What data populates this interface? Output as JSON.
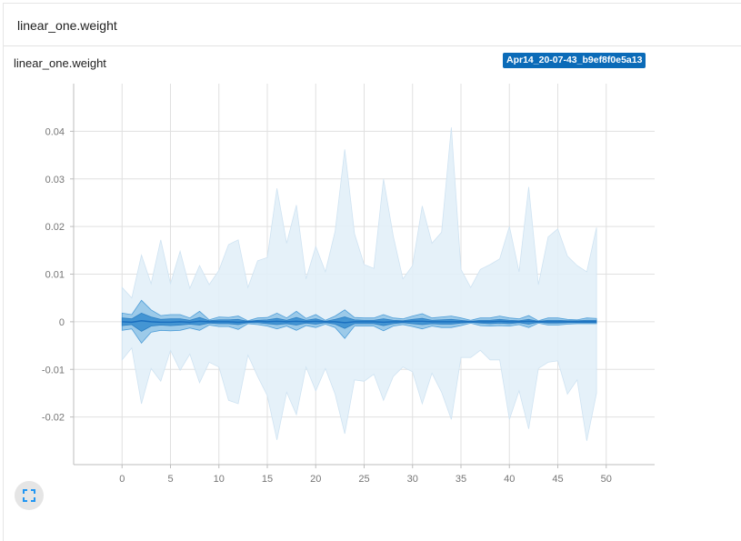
{
  "header": {
    "title": "linear_one.weight"
  },
  "card": {
    "title": "linear_one.weight",
    "run_label": "Apr14_20-07-43_b9ef8f0e5a13"
  },
  "icons": {
    "expand": "fullscreen-expand-icon"
  },
  "colors": {
    "band_outer": "#e2eff8",
    "band_mid": "#8fc3e6",
    "band_inner": "#3b8fd0",
    "median": "#1a6fbf",
    "grid": "#e0e0e0",
    "accent": "#2196f3"
  },
  "chart_data": {
    "type": "area",
    "title": "linear_one.weight",
    "xlabel": "",
    "ylabel": "",
    "xlim": [
      -5,
      55
    ],
    "ylim": [
      -0.03,
      0.05
    ],
    "x_ticks": [
      0,
      5,
      10,
      15,
      20,
      25,
      30,
      35,
      40,
      45,
      50
    ],
    "y_ticks": [
      -0.02,
      -0.01,
      0,
      0.01,
      0.02,
      0.03,
      0.04
    ],
    "y_tick_labels": [
      "-0.02",
      "-0.01",
      "0",
      "0.01",
      "0.02",
      "0.03",
      "0.04"
    ],
    "grid": true,
    "x": [
      0,
      1,
      2,
      3,
      4,
      5,
      6,
      7,
      8,
      9,
      10,
      11,
      12,
      13,
      14,
      15,
      16,
      17,
      18,
      19,
      20,
      21,
      22,
      23,
      24,
      25,
      26,
      27,
      28,
      29,
      30,
      31,
      32,
      33,
      34,
      35,
      36,
      37,
      38,
      39,
      40,
      41,
      42,
      43,
      44,
      45,
      46,
      47,
      48,
      49
    ],
    "series": [
      {
        "band": "outer",
        "upper": [
          0.0072,
          0.005,
          0.014,
          0.008,
          0.0172,
          0.008,
          0.0148,
          0.007,
          0.0118,
          0.0078,
          0.0108,
          0.0162,
          0.0172,
          0.0072,
          0.0128,
          0.0135,
          0.028,
          0.0165,
          0.0245,
          0.009,
          0.0158,
          0.0105,
          0.019,
          0.0362,
          0.0185,
          0.012,
          0.0112,
          0.03,
          0.018,
          0.009,
          0.0118,
          0.0243,
          0.0165,
          0.0188,
          0.0408,
          0.011,
          0.0072,
          0.011,
          0.012,
          0.0132,
          0.02,
          0.0105,
          0.0283,
          0.0078,
          0.0178,
          0.0195,
          0.0138,
          0.0118,
          0.0105,
          0.0198
        ],
        "lower": [
          -0.008,
          -0.0055,
          -0.0172,
          -0.0098,
          -0.0125,
          -0.006,
          -0.0102,
          -0.0068,
          -0.0128,
          -0.0085,
          -0.0095,
          -0.0165,
          -0.0172,
          -0.007,
          -0.0115,
          -0.0155,
          -0.0248,
          -0.0148,
          -0.0195,
          -0.0095,
          -0.0145,
          -0.0098,
          -0.0152,
          -0.0235,
          -0.0122,
          -0.0125,
          -0.011,
          -0.0165,
          -0.0115,
          -0.0095,
          -0.0105,
          -0.0172,
          -0.0108,
          -0.0148,
          -0.0205,
          -0.0075,
          -0.0075,
          -0.006,
          -0.008,
          -0.008,
          -0.0205,
          -0.0145,
          -0.0225,
          -0.0098,
          -0.0085,
          -0.0082,
          -0.0152,
          -0.0122,
          -0.025,
          -0.015
        ]
      },
      {
        "band": "mid",
        "upper": [
          0.0018,
          0.0015,
          0.0045,
          0.0025,
          0.0013,
          0.0015,
          0.0015,
          0.0008,
          0.0022,
          0.0004,
          0.001,
          0.0009,
          0.0012,
          0.0002,
          0.0008,
          0.0009,
          0.0018,
          0.0008,
          0.0022,
          0.0007,
          0.0015,
          0.0003,
          0.0012,
          0.0025,
          0.0009,
          0.0008,
          0.0008,
          0.0015,
          0.0008,
          0.0006,
          0.0012,
          0.0017,
          0.0008,
          0.001,
          0.0012,
          0.0008,
          0.0003,
          0.0008,
          0.0008,
          0.0012,
          0.0008,
          0.0006,
          0.0013,
          0.0002,
          0.0008,
          0.0008,
          0.0005,
          0.0004,
          0.0008,
          0.0007
        ],
        "lower": [
          -0.0018,
          -0.0015,
          -0.0045,
          -0.0022,
          -0.0018,
          -0.0019,
          -0.0018,
          -0.0013,
          -0.0018,
          -0.0007,
          -0.001,
          -0.001,
          -0.0016,
          -0.0004,
          -0.0006,
          -0.0009,
          -0.0015,
          -0.0009,
          -0.0018,
          -0.0008,
          -0.0012,
          -0.0005,
          -0.0012,
          -0.0035,
          -0.0009,
          -0.0009,
          -0.0009,
          -0.0019,
          -0.0009,
          -0.0006,
          -0.001,
          -0.0015,
          -0.0009,
          -0.0012,
          -0.0012,
          -0.0008,
          -0.0003,
          -0.0008,
          -0.0009,
          -0.0008,
          -0.0009,
          -0.0006,
          -0.0012,
          -0.0003,
          -0.0007,
          -0.0007,
          -0.0005,
          -0.0004,
          -0.0004,
          -0.0004
        ]
      },
      {
        "band": "inner",
        "upper": [
          0.0008,
          0.0006,
          0.0018,
          0.001,
          0.0005,
          0.0006,
          0.0006,
          0.0003,
          0.0009,
          0.0002,
          0.0004,
          0.0004,
          0.0005,
          0.0001,
          0.0003,
          0.0004,
          0.0007,
          0.0003,
          0.0009,
          0.0003,
          0.0006,
          0.0001,
          0.0005,
          0.001,
          0.0004,
          0.0003,
          0.0003,
          0.0006,
          0.0003,
          0.0002,
          0.0005,
          0.0007,
          0.0003,
          0.0004,
          0.0005,
          0.0003,
          0.0001,
          0.0003,
          0.0003,
          0.0005,
          0.0003,
          0.0002,
          0.0005,
          0.0001,
          0.0003,
          0.0003,
          0.0002,
          0.0002,
          0.0003,
          0.0003
        ],
        "lower": [
          -0.0008,
          -0.0006,
          -0.002,
          -0.0009,
          -0.0007,
          -0.0008,
          -0.0007,
          -0.0005,
          -0.0007,
          -0.0003,
          -0.0004,
          -0.0004,
          -0.0006,
          -0.0002,
          -0.0002,
          -0.0004,
          -0.0006,
          -0.0004,
          -0.0007,
          -0.0003,
          -0.0005,
          -0.0002,
          -0.0005,
          -0.0014,
          -0.0004,
          -0.0004,
          -0.0004,
          -0.0008,
          -0.0004,
          -0.0002,
          -0.0004,
          -0.0006,
          -0.0004,
          -0.0005,
          -0.0005,
          -0.0003,
          -0.0001,
          -0.0003,
          -0.0004,
          -0.0003,
          -0.0004,
          -0.0002,
          -0.0005,
          -0.0001,
          -0.0003,
          -0.0003,
          -0.0002,
          -0.0002,
          -0.0002,
          -0.0002
        ]
      },
      {
        "band": "median",
        "values": [
          0.0,
          -0.0001,
          0.0002,
          0.0,
          -0.0001,
          -0.0001,
          0.0,
          -0.0001,
          0.0001,
          0.0,
          0.0,
          0.0,
          -0.0001,
          0.0,
          0.0001,
          0.0,
          0.0001,
          0.0,
          0.0001,
          0.0,
          0.0001,
          0.0,
          0.0,
          -0.0002,
          0.0,
          0.0,
          0.0,
          -0.0001,
          0.0,
          0.0,
          0.0001,
          0.0001,
          0.0,
          0.0,
          0.0,
          0.0,
          0.0,
          0.0,
          0.0,
          0.0001,
          0.0,
          0.0,
          0.0001,
          0.0,
          0.0,
          0.0,
          0.0,
          0.0,
          0.0,
          0.0
        ]
      }
    ]
  }
}
